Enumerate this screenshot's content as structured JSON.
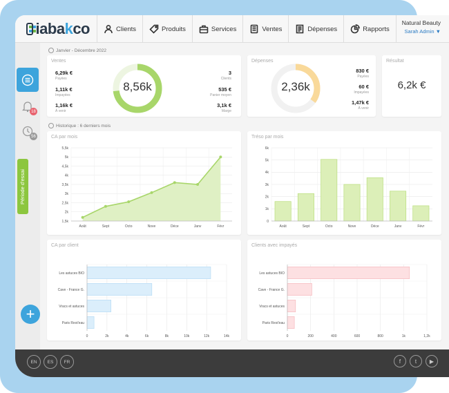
{
  "app": {
    "logo_prefix": "iaba",
    "logo_suffix": "co"
  },
  "nav": {
    "items": [
      {
        "label": "Clients",
        "icon": "person-icon"
      },
      {
        "label": "Produits",
        "icon": "tag-icon"
      },
      {
        "label": "Services",
        "icon": "toolbox-icon"
      },
      {
        "label": "Ventes",
        "icon": "register-icon"
      },
      {
        "label": "Dépenses",
        "icon": "receipt-icon"
      },
      {
        "label": "Rapports",
        "icon": "pie-icon"
      }
    ]
  },
  "user": {
    "shop": "Natural Beauty",
    "name": "Sarah Admin ▼"
  },
  "sidebar": {
    "notif_count": "18",
    "history_count": "56",
    "trial_label": "Période d'essai"
  },
  "period": {
    "label": "Janvier - Décembre 2022"
  },
  "history": {
    "label": "Historique : 6 derniers mois"
  },
  "ventes": {
    "title": "Ventes",
    "center": "8,56k",
    "left": [
      {
        "value": "6,29k €",
        "label": "Payées"
      },
      {
        "value": "1,11k €",
        "label": "Impayées"
      },
      {
        "value": "1,16k €",
        "label": "À venir"
      }
    ],
    "right": [
      {
        "value": "3",
        "label": "Clients"
      },
      {
        "value": "535 €",
        "label": "Panier moyen"
      },
      {
        "value": "3,1k €",
        "label": "Marge"
      }
    ],
    "ring_fill": 0.73,
    "ring_color": "#a8d66a"
  },
  "depenses": {
    "title": "Dépenses",
    "center": "2,36k",
    "right": [
      {
        "value": "830 €",
        "label": "Payées"
      },
      {
        "value": "60 €",
        "label": "Impayées"
      },
      {
        "value": "1,47k €",
        "label": "À venir"
      }
    ],
    "ring_fill": 0.35,
    "ring_color": "#f9d99a"
  },
  "resultat": {
    "title": "Résultat",
    "value": "6,2k €"
  },
  "ca_mois": {
    "title": "CA par mois"
  },
  "treso": {
    "title": "Tréso par mois"
  },
  "ca_client": {
    "title": "CA par client"
  },
  "impayes": {
    "title": "Clients avec impayés"
  },
  "footer": {
    "langs": [
      "EN",
      "ES",
      "FR"
    ],
    "social": [
      "f",
      "t",
      "▶"
    ],
    "social_icons": [
      "facebook-icon",
      "twitter-icon",
      "youtube-icon"
    ]
  },
  "chart_data": [
    {
      "type": "area",
      "title": "CA par mois",
      "categories": [
        "Août",
        "Sept",
        "Octo",
        "Nove",
        "Déce",
        "Janv",
        "Févr"
      ],
      "values": [
        1700,
        2300,
        2550,
        3050,
        3600,
        3500,
        5000
      ],
      "ylim": [
        1500,
        5500
      ],
      "yticks": [
        "1,5k",
        "2k",
        "2,5k",
        "3k",
        "3,5k",
        "4k",
        "4,5k",
        "5k",
        "5,5k"
      ],
      "color": "#a8d66a",
      "grid": true
    },
    {
      "type": "bar",
      "title": "Tréso par mois",
      "categories": [
        "Août",
        "Sept",
        "Octo",
        "Nove",
        "Déce",
        "Janv",
        "Févr"
      ],
      "values": [
        1600,
        2250,
        5050,
        3000,
        3550,
        2450,
        1250
      ],
      "ylim": [
        0,
        6000
      ],
      "yticks": [
        "0",
        "1k",
        "2k",
        "3k",
        "4k",
        "5k",
        "6k"
      ],
      "color": "#dcefb8",
      "stroke": "#b9de7c",
      "grid": true
    },
    {
      "type": "bar",
      "orientation": "horizontal",
      "title": "CA par client",
      "categories": [
        "Les astuces BIO",
        "Cave - France G.",
        "Vracs et astuces",
        "Paris Rest'eau"
      ],
      "values": [
        12400,
        6500,
        2400,
        700
      ],
      "xlim": [
        0,
        14000
      ],
      "xticks": [
        "0",
        "2k",
        "4k",
        "6k",
        "8k",
        "10k",
        "12k",
        "14k"
      ],
      "color": "#dbeefb",
      "stroke": "#b7dcf5",
      "grid": true
    },
    {
      "type": "bar",
      "orientation": "horizontal",
      "title": "Clients avec impayés",
      "categories": [
        "Les astuces BIO",
        "Cave - France G.",
        "Vracs et astuces",
        "Paris Rest'eau"
      ],
      "values": [
        1050,
        210,
        70,
        60
      ],
      "xlim": [
        0,
        1200
      ],
      "xticks": [
        "0",
        "200",
        "400",
        "600",
        "800",
        "1k",
        "1,2k"
      ],
      "color": "#fde0e2",
      "stroke": "#f6b9be",
      "grid": true
    }
  ]
}
